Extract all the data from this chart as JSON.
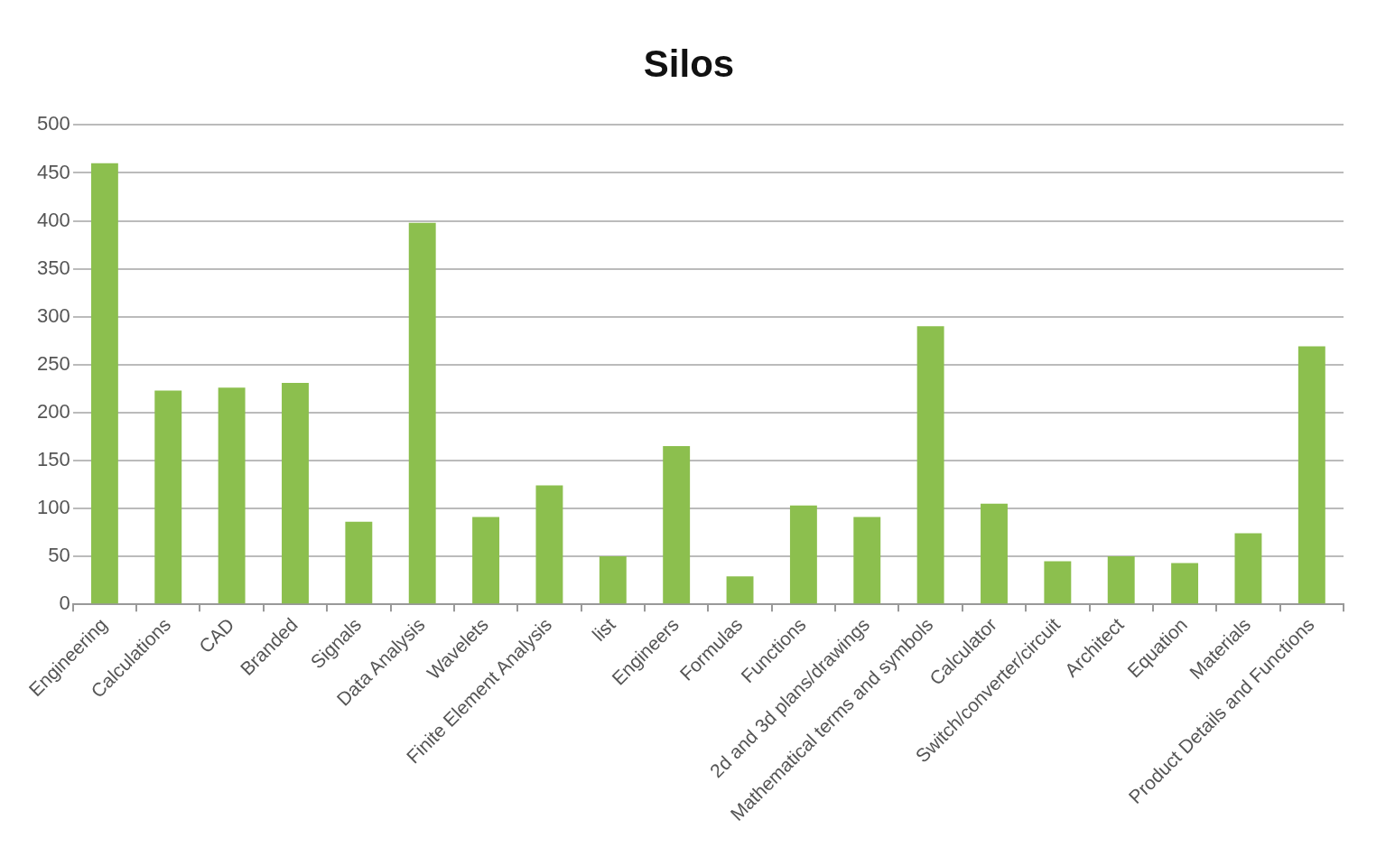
{
  "chart_data": {
    "type": "bar",
    "title": "Silos",
    "categories": [
      "Engineering",
      "Calculations",
      "CAD",
      "Branded",
      "Signals",
      "Data Analysis",
      "Wavelets",
      "Finite Element Analysis",
      "list",
      "Engineers",
      "Formulas",
      "Functions",
      "2d and 3d plans/drawings",
      "Mathematical terms and symbols",
      "Calculator",
      "Switch/converter/circuit",
      "Architect",
      "Equation",
      "Materials",
      "Product Details and Functions"
    ],
    "values": [
      460,
      223,
      226,
      231,
      86,
      398,
      91,
      124,
      50,
      165,
      29,
      103,
      91,
      290,
      105,
      45,
      50,
      43,
      74,
      269
    ],
    "color": "#8cbf4e",
    "ylim": [
      0,
      500
    ],
    "yticks": [
      0,
      50,
      100,
      150,
      200,
      250,
      300,
      350,
      400,
      450,
      500
    ],
    "grid": "y",
    "legend": false
  }
}
